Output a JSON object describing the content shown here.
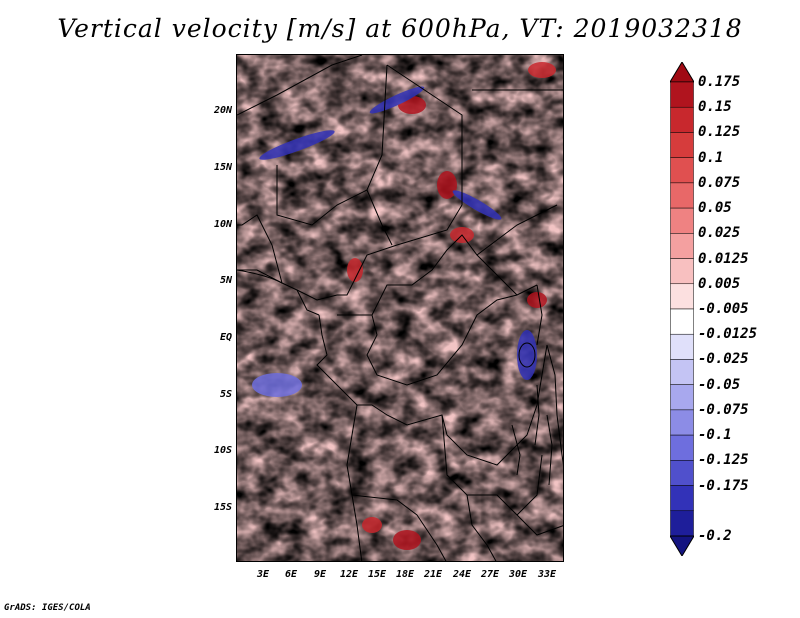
{
  "title": "Vertical velocity [m/s] at 600hPa, VT: 2019032318",
  "footer": "GrADS: IGES/COLA",
  "lat_labels": [
    "20N",
    "15N",
    "10N",
    "5N",
    "EQ",
    "5S",
    "10S",
    "15S"
  ],
  "lon_labels": [
    "3E",
    "6E",
    "9E",
    "12E",
    "15E",
    "18E",
    "21E",
    "24E",
    "27E",
    "30E",
    "33E"
  ],
  "colorbar": {
    "labels": [
      "0.175",
      "0.15",
      "0.125",
      "0.1",
      "0.075",
      "0.05",
      "0.025",
      "0.0125",
      "0.005",
      "-0.005",
      "-0.0125",
      "-0.025",
      "-0.05",
      "-0.075",
      "-0.1",
      "-0.125",
      "-0.175",
      "-0.2"
    ],
    "colors": [
      "#b0141e",
      "#c8282d",
      "#d63c3c",
      "#e05050",
      "#e86868",
      "#ef8282",
      "#f4a0a0",
      "#f8c0c0",
      "#fce0e0",
      "#ffffff",
      "#e0e0fa",
      "#c4c4f4",
      "#a8a8ee",
      "#8c8ce6",
      "#6e6ede",
      "#5050cc",
      "#3232b8",
      "#1e1e9a"
    ],
    "cap_top_color": "#a00a14",
    "cap_bottom_color": "#141480"
  },
  "map_palette": {
    "background": "#f4e8f0",
    "pos_strong": "#b0141e",
    "pos_mid": "#e86868",
    "pos_weak": "#f4b8b8",
    "neg_weak": "#c4c4f4",
    "neg_mid": "#8c8ce6",
    "neg_strong": "#3232b8",
    "border": "#000000"
  }
}
